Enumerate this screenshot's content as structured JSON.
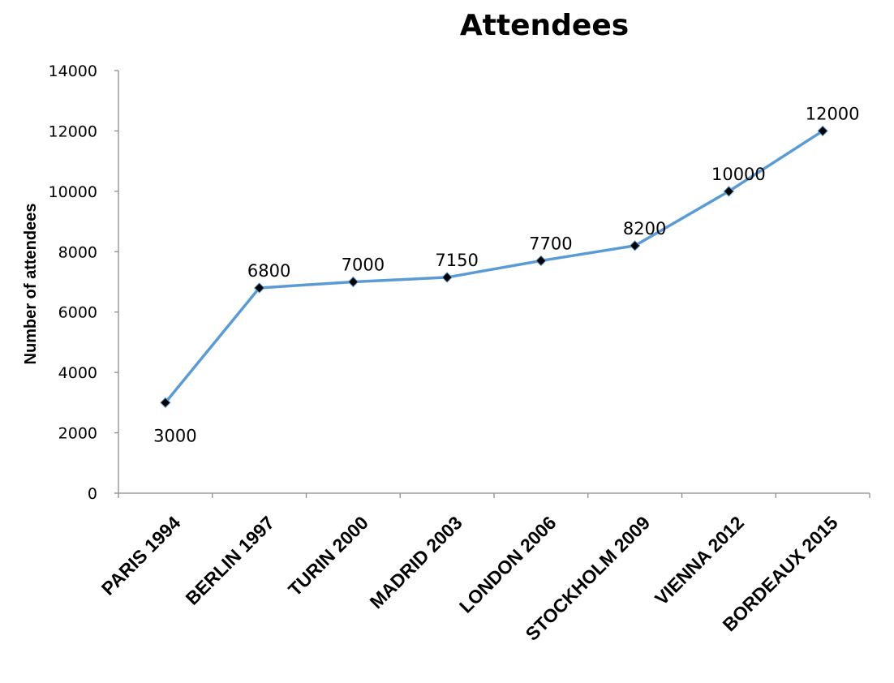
{
  "chart_data": {
    "type": "line",
    "title": "Attendees",
    "xlabel": "",
    "ylabel": "Number of attendees",
    "categories": [
      "PARIS 1994",
      "BERLIN 1997",
      "TURIN 2000",
      "MADRID 2003",
      "LONDON 2006",
      "STOCKHOLM 2009",
      "VIENNA 2012",
      "BORDEAUX 2015"
    ],
    "series": [
      {
        "values": [
          3000,
          6800,
          7000,
          7150,
          7700,
          8200,
          10000,
          12000
        ],
        "color": "#5B9BD5",
        "marker": "diamond",
        "marker_color": "#000000"
      }
    ],
    "data_labels": [
      "3000",
      "6800",
      "7000",
      "7150",
      "7700",
      "8200",
      "10000",
      "12000"
    ],
    "ylim": [
      0,
      14000
    ],
    "yticks": [
      0,
      2000,
      4000,
      6000,
      8000,
      10000,
      12000,
      14000
    ],
    "grid": false,
    "legend": "none"
  }
}
